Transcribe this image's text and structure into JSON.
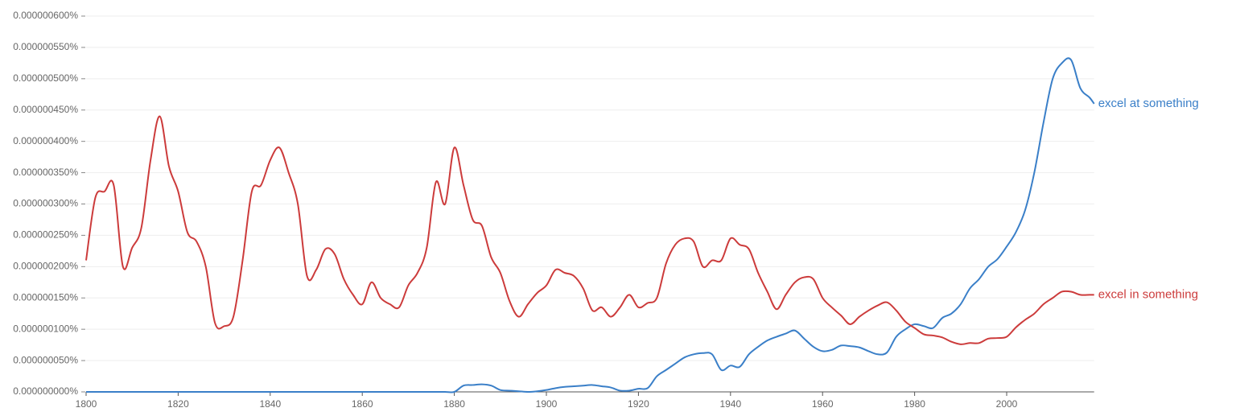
{
  "chart_data": {
    "type": "line",
    "xlim": [
      1800,
      2019
    ],
    "ylim": [
      0,
      6e-07
    ],
    "xticks": [
      1800,
      1820,
      1840,
      1860,
      1880,
      1900,
      1920,
      1940,
      1960,
      1980,
      2000
    ],
    "yticks": [
      {
        "value": 0,
        "label": "0.000000000%"
      },
      {
        "value": 5e-08,
        "label": "0.000000050%"
      },
      {
        "value": 1e-07,
        "label": "0.000000100%"
      },
      {
        "value": 1.5e-07,
        "label": "0.000000150%"
      },
      {
        "value": 2e-07,
        "label": "0.000000200%"
      },
      {
        "value": 2.5e-07,
        "label": "0.000000250%"
      },
      {
        "value": 3e-07,
        "label": "0.000000300%"
      },
      {
        "value": 3.5e-07,
        "label": "0.000000350%"
      },
      {
        "value": 4e-07,
        "label": "0.000000400%"
      },
      {
        "value": 4.5e-07,
        "label": "0.000000450%"
      },
      {
        "value": 5e-07,
        "label": "0.000000500%"
      },
      {
        "value": 5.5e-07,
        "label": "0.000000550%"
      },
      {
        "value": 6e-07,
        "label": "0.000000600%"
      }
    ],
    "grid": true,
    "x": [
      1800,
      1802,
      1804,
      1806,
      1808,
      1810,
      1812,
      1814,
      1816,
      1818,
      1820,
      1822,
      1824,
      1826,
      1828,
      1830,
      1832,
      1834,
      1836,
      1838,
      1840,
      1842,
      1844,
      1846,
      1848,
      1850,
      1852,
      1854,
      1856,
      1858,
      1860,
      1862,
      1864,
      1866,
      1868,
      1870,
      1872,
      1874,
      1876,
      1878,
      1880,
      1882,
      1884,
      1886,
      1888,
      1890,
      1892,
      1894,
      1896,
      1898,
      1900,
      1902,
      1904,
      1906,
      1908,
      1910,
      1912,
      1914,
      1916,
      1918,
      1920,
      1922,
      1924,
      1926,
      1928,
      1930,
      1932,
      1934,
      1936,
      1938,
      1940,
      1942,
      1944,
      1946,
      1948,
      1950,
      1952,
      1954,
      1956,
      1958,
      1960,
      1962,
      1964,
      1966,
      1968,
      1970,
      1972,
      1974,
      1976,
      1978,
      1980,
      1982,
      1984,
      1986,
      1988,
      1990,
      1992,
      1994,
      1996,
      1998,
      2000,
      2002,
      2004,
      2006,
      2008,
      2010,
      2012,
      2014,
      2016,
      2018,
      2019
    ],
    "series": [
      {
        "name": "excel at something",
        "color": "#3a7fc8",
        "values": [
          0,
          0,
          0,
          0,
          0,
          0,
          0,
          0,
          0,
          0,
          0,
          0,
          0,
          0,
          0,
          0,
          0,
          0,
          0,
          0,
          0,
          0,
          0,
          0,
          0,
          0,
          0,
          0,
          0,
          0,
          0,
          0,
          0,
          0,
          0,
          0,
          0,
          0,
          0,
          0,
          0,
          1e-08,
          1.1e-08,
          1.2e-08,
          1e-08,
          3e-09,
          2e-09,
          1e-09,
          0,
          1e-09,
          3e-09,
          6e-09,
          8e-09,
          9e-09,
          1e-08,
          1.1e-08,
          9e-09,
          7e-09,
          2e-09,
          2e-09,
          5e-09,
          6e-09,
          2.5e-08,
          3.5e-08,
          4.5e-08,
          5.5e-08,
          6e-08,
          6.2e-08,
          6e-08,
          3.5e-08,
          4.2e-08,
          4e-08,
          6e-08,
          7.2e-08,
          8.2e-08,
          8.8e-08,
          9.3e-08,
          9.8e-08,
          8.5e-08,
          7.2e-08,
          6.5e-08,
          6.7e-08,
          7.4e-08,
          7.3e-08,
          7.1e-08,
          6.5e-08,
          6e-08,
          6.3e-08,
          8.8e-08,
          1e-07,
          1.08e-07,
          1.05e-07,
          1.02e-07,
          1.18e-07,
          1.25e-07,
          1.4e-07,
          1.65e-07,
          1.8e-07,
          2e-07,
          2.12e-07,
          2.32e-07,
          2.55e-07,
          2.9e-07,
          3.5e-07,
          4.3e-07,
          5e-07,
          5.25e-07,
          5.3e-07,
          4.85e-07,
          4.7e-07,
          4.6e-07
        ]
      },
      {
        "name": "excel in something",
        "color": "#cc3b3b",
        "values": [
          2.1e-07,
          3.1e-07,
          3.2e-07,
          3.3e-07,
          2e-07,
          2.3e-07,
          2.62e-07,
          3.7e-07,
          4.4e-07,
          3.6e-07,
          3.2e-07,
          2.55e-07,
          2.4e-07,
          2e-07,
          1.1e-07,
          1.05e-07,
          1.2e-07,
          2.1e-07,
          3.2e-07,
          3.3e-07,
          3.7e-07,
          3.9e-07,
          3.5e-07,
          3e-07,
          1.85e-07,
          1.95e-07,
          2.28e-07,
          2.2e-07,
          1.8e-07,
          1.55e-07,
          1.4e-07,
          1.75e-07,
          1.5e-07,
          1.4e-07,
          1.35e-07,
          1.7e-07,
          1.9e-07,
          2.3e-07,
          3.35e-07,
          3e-07,
          3.9e-07,
          3.3e-07,
          2.75e-07,
          2.65e-07,
          2.15e-07,
          1.9e-07,
          1.45e-07,
          1.2e-07,
          1.4e-07,
          1.58e-07,
          1.7e-07,
          1.95e-07,
          1.9e-07,
          1.85e-07,
          1.65e-07,
          1.3e-07,
          1.35e-07,
          1.2e-07,
          1.35e-07,
          1.55e-07,
          1.35e-07,
          1.42e-07,
          1.5e-07,
          2.05e-07,
          2.35e-07,
          2.45e-07,
          2.4e-07,
          2e-07,
          2.1e-07,
          2.1e-07,
          2.45e-07,
          2.35e-07,
          2.28e-07,
          1.9e-07,
          1.6e-07,
          1.32e-07,
          1.55e-07,
          1.75e-07,
          1.83e-07,
          1.8e-07,
          1.5e-07,
          1.35e-07,
          1.22e-07,
          1.08e-07,
          1.2e-07,
          1.3e-07,
          1.38e-07,
          1.43e-07,
          1.3e-07,
          1.12e-07,
          1.02e-07,
          9.2e-08,
          9e-08,
          8.7e-08,
          8e-08,
          7.6e-08,
          7.8e-08,
          7.8e-08,
          8.5e-08,
          8.6e-08,
          8.8e-08,
          1.03e-07,
          1.15e-07,
          1.25e-07,
          1.4e-07,
          1.5e-07,
          1.6e-07,
          1.6e-07,
          1.55e-07,
          1.55e-07,
          1.55e-07
        ]
      }
    ]
  }
}
